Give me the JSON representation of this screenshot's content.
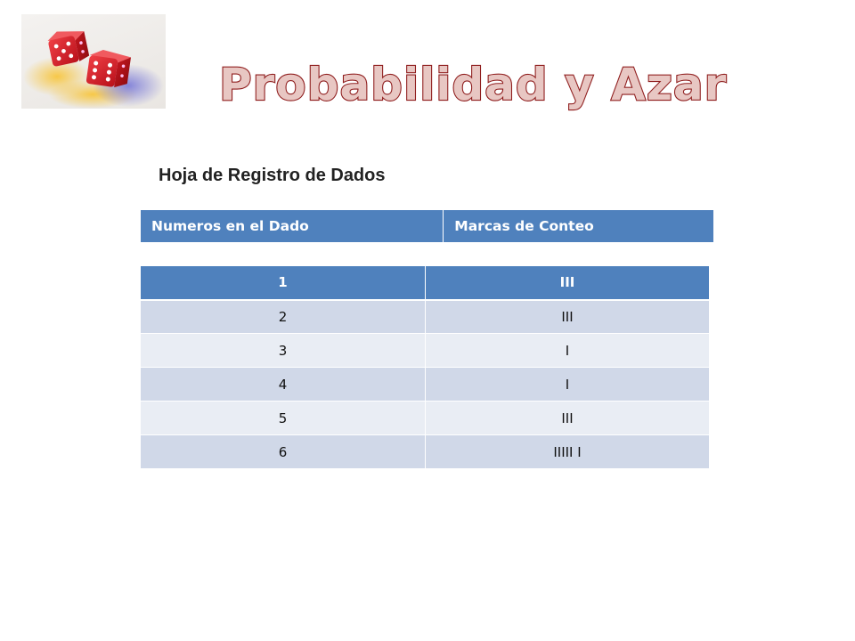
{
  "title": "Probabilidad y Azar",
  "subtitle": "Hoja de Registro de Dados",
  "header": {
    "col1": "Numeros en el Dado",
    "col2": "Marcas de Conteo"
  },
  "rows": [
    {
      "number": "1",
      "tally": "III"
    },
    {
      "number": "2",
      "tally": "III"
    },
    {
      "number": "3",
      "tally": "I"
    },
    {
      "number": "4",
      "tally": "I"
    },
    {
      "number": "5",
      "tally": "III"
    },
    {
      "number": "6",
      "tally": "IIIII I"
    }
  ],
  "colors": {
    "title_fill": "#e8c7c3",
    "title_stroke": "#8f1d1d",
    "header_blue": "#4f81bd",
    "row_dark": "#d0d8e8",
    "row_light": "#e9edf4",
    "dice_red": "#d01c24"
  },
  "image": {
    "icon": "red-dice-icon"
  }
}
